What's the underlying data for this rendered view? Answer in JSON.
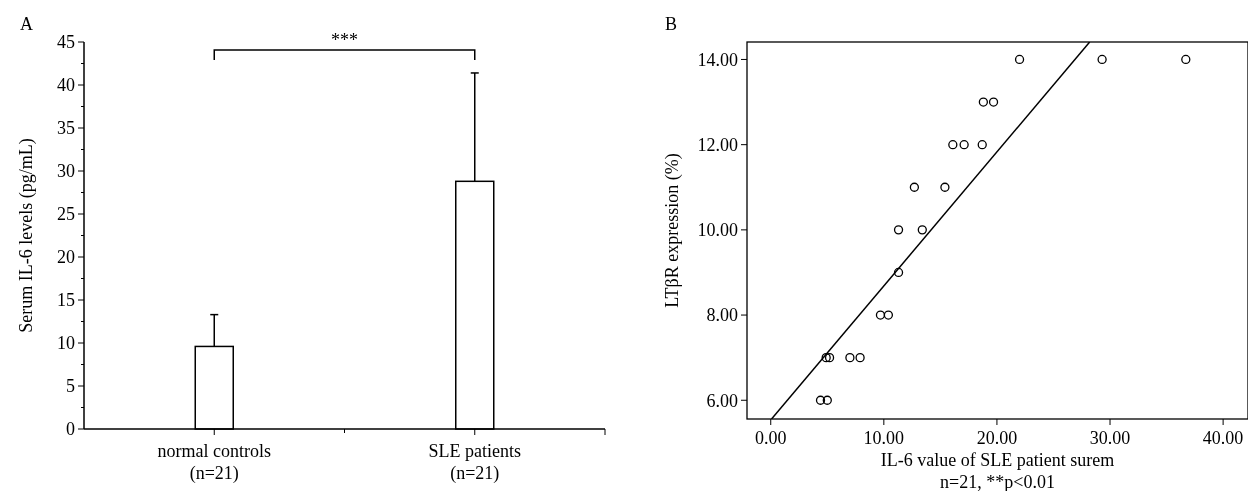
{
  "chart_data": [
    {
      "type": "bar",
      "title": "A",
      "ylabel": "Serum IL-6 levels (pg/mL)",
      "categories": [
        "normal controls\n(n=21)",
        "SLE patients\n(n=21)"
      ],
      "values": [
        9.6,
        28.8
      ],
      "errors": [
        [
          9.6,
          13.3
        ],
        [
          28.8,
          41.4
        ]
      ],
      "color": "#ffffff",
      "ylim": [
        0,
        45
      ],
      "yticks": [
        0,
        {
          "value": 2.5,
          "label": null
        },
        5,
        {
          "value": 7.5,
          "label": null
        },
        10,
        {
          "value": 12.5,
          "label": null
        },
        15,
        {
          "value": 17.5,
          "label": null
        },
        20,
        {
          "value": 22.5,
          "label": null
        },
        25,
        {
          "value": 27.5,
          "label": null
        },
        30,
        {
          "value": 32.5,
          "label": null
        },
        35,
        {
          "value": 37.5,
          "label": null
        },
        40,
        {
          "value": 42.5,
          "label": null
        },
        45
      ],
      "annotations": [
        "***"
      ],
      "grid": false
    },
    {
      "type": "scatter",
      "title": "B",
      "xlabel": "IL-6 value of SLE patient surem",
      "ylabel": "LTβR expression (%)",
      "annotations": [
        "n=21, **p<0.01"
      ],
      "xlim": [
        -2.1,
        42.2
      ],
      "ylim": [
        5.56,
        14.41
      ],
      "xticks": [
        {
          "value": 0,
          "label": "0.00"
        },
        {
          "value": 10,
          "label": "10.00"
        },
        {
          "value": 20,
          "label": "20.00"
        },
        {
          "value": 30,
          "label": "30.00"
        },
        {
          "value": 40,
          "label": "40.00"
        }
      ],
      "yticks": [
        {
          "value": 6,
          "label": "6.00"
        },
        {
          "value": 8,
          "label": "8.00"
        },
        {
          "value": 10,
          "label": "10.00"
        },
        {
          "value": 12,
          "label": "12.00"
        },
        {
          "value": 14,
          "label": "14.00"
        }
      ],
      "grid": false,
      "series": [
        {
          "type": "scatter",
          "marker": "circle",
          "color": "#000000",
          "x": [
            22.0,
            29.3,
            36.7,
            18.8,
            19.7,
            16.1,
            17.1,
            18.7,
            12.7,
            15.4,
            11.3,
            13.4,
            11.3,
            9.7,
            10.4,
            4.9,
            5.2,
            7.0,
            7.9,
            4.4,
            5.0
          ],
          "values": [
            14,
            14,
            14,
            13,
            13,
            12,
            12,
            12,
            11,
            11,
            10,
            10,
            9,
            8,
            8,
            7,
            7,
            7,
            7,
            6,
            6
          ]
        },
        {
          "type": "line",
          "marker": "none",
          "color": "#000000",
          "x": [
            0.07,
            28.2
          ],
          "values": [
            5.56,
            14.41
          ]
        }
      ]
    }
  ]
}
